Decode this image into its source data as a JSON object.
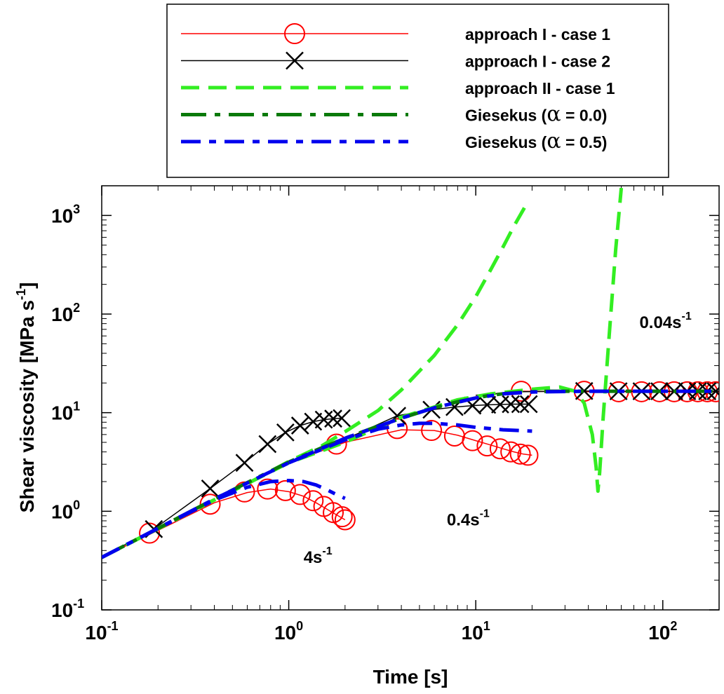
{
  "chart_data": {
    "type": "line",
    "title": "",
    "xlabel": "Time [s]",
    "ylabel": "Shear viscosity [MPa s",
    "ylabel_sup": "-1",
    "ylabel_close": "]",
    "xscale": "log",
    "yscale": "log",
    "xlim": [
      0.1,
      200
    ],
    "ylim": [
      0.1,
      2000
    ],
    "grid": false,
    "legend_position": "top, above plot",
    "x_ticks": [
      {
        "value": 0.1,
        "base": "10",
        "exp": "-1"
      },
      {
        "value": 1,
        "base": "10",
        "exp": "0"
      },
      {
        "value": 10,
        "base": "10",
        "exp": "1"
      },
      {
        "value": 100,
        "base": "10",
        "exp": "2"
      }
    ],
    "y_ticks": [
      {
        "value": 0.1,
        "base": "10",
        "exp": "-1"
      },
      {
        "value": 1,
        "base": "10",
        "exp": "0"
      },
      {
        "value": 10,
        "base": "10",
        "exp": "1"
      },
      {
        "value": 100,
        "base": "10",
        "exp": "2"
      },
      {
        "value": 1000,
        "base": "10",
        "exp": "3"
      }
    ],
    "legend": [
      {
        "pre": "approach I - case 1",
        "greek": "",
        "post": "",
        "color": "#ff0000",
        "dash": "",
        "width": 1.5,
        "marker": "circle"
      },
      {
        "pre": "approach I - case 2",
        "greek": "",
        "post": "",
        "color": "#000000",
        "dash": "",
        "width": 1.5,
        "marker": "cross"
      },
      {
        "pre": "approach II - case 1",
        "greek": "",
        "post": "",
        "color": "#33ee22",
        "dash": "26 13",
        "width": 5,
        "marker": ""
      },
      {
        "pre": "Giesekus (",
        "greek": "α",
        "post": " = 0.0)",
        "color": "#0a7a0a",
        "dash": "36 12 8 12",
        "width": 5,
        "marker": ""
      },
      {
        "pre": "Giesekus (",
        "greek": "α",
        "post": " = 0.5)",
        "color": "#0000ee",
        "dash": "28 12 10 12",
        "width": 5,
        "marker": ""
      }
    ],
    "annotations": [
      {
        "base": "4s",
        "sup": "-1",
        "x": 1.2,
        "y": 0.3
      },
      {
        "base": "0.4s",
        "sup": "-1",
        "x": 7.0,
        "y": 0.72
      },
      {
        "base": "0.04s",
        "sup": "-1",
        "x": 75,
        "y": 72
      }
    ],
    "series": [
      {
        "name": "approach I - case 1",
        "color": "#ff0000",
        "lines": [
          {
            "x": [
              0.1,
              0.2,
              0.4,
              0.6,
              0.8,
              1.0,
              1.2,
              1.4,
              1.6,
              1.8,
              2.0
            ],
            "y": [
              0.34,
              0.64,
              1.22,
              1.55,
              1.68,
              1.58,
              1.42,
              1.22,
              1.05,
              0.92,
              0.82
            ]
          },
          {
            "x": [
              1.0,
              2.0,
              4.0,
              6.0,
              8.0,
              10,
              12,
              14,
              16,
              18,
              20
            ],
            "y": [
              3.1,
              5.0,
              6.7,
              6.6,
              5.9,
              5.2,
              4.7,
              4.3,
              4.0,
              3.8,
              3.7
            ]
          },
          {
            "x": [
              10,
              18,
              40,
              60,
              80,
              100,
              120,
              140,
              160,
              180,
              200
            ],
            "y": [
              15,
              16.5,
              16.3,
              16.3,
              16.3,
              16.3,
              16.3,
              16.3,
              16.3,
              16.3,
              16.3
            ]
          }
        ],
        "markers": [
          {
            "x": [
              0.18,
              0.38,
              0.58,
              0.77,
              0.96,
              1.15,
              1.35,
              1.54,
              1.73,
              1.93,
              2.0
            ],
            "y": [
              0.6,
              1.18,
              1.57,
              1.68,
              1.62,
              1.48,
              1.28,
              1.12,
              0.97,
              0.88,
              0.82
            ]
          },
          {
            "x": [
              1.8,
              3.8,
              5.8,
              7.7,
              9.6,
              11.5,
              13.5,
              15.4,
              17.3,
              19.0
            ],
            "y": [
              4.8,
              6.9,
              6.6,
              5.8,
              5.2,
              4.6,
              4.3,
              4.0,
              3.8,
              3.7
            ]
          },
          {
            "x": [
              17.5,
              38,
              58,
              77,
              96,
              115,
              135,
              154,
              173,
              192
            ],
            "y": [
              16.5,
              16.5,
              16.3,
              16.3,
              16.3,
              16.3,
              16.3,
              16.3,
              16.3,
              16.3
            ]
          }
        ]
      },
      {
        "name": "approach I - case 2",
        "color": "#000000",
        "lines": [
          {
            "x": [
              0.1,
              0.19,
              0.38,
              0.58,
              0.77,
              0.96,
              1.15,
              1.35,
              1.54,
              1.73,
              1.92
            ],
            "y": [
              0.34,
              0.66,
              1.7,
              3.1,
              4.8,
              6.3,
              7.4,
              8.1,
              8.5,
              8.7,
              8.8
            ]
          },
          {
            "x": [
              1.0,
              1.8,
              3.8,
              5.8,
              7.7,
              9.6,
              11.5,
              13.5,
              15.4,
              17.3,
              19.2
            ],
            "y": [
              3.1,
              4.9,
              9.3,
              10.7,
              11.4,
              11.8,
              12.0,
              12.1,
              12.2,
              12.2,
              12.2
            ]
          },
          {
            "x": [
              10,
              18,
              38,
              58,
              77,
              96,
              115,
              135,
              154,
              173,
              200
            ],
            "y": [
              15,
              16.3,
              16.6,
              16.5,
              16.5,
              16.5,
              16.5,
              16.5,
              16.5,
              16.5,
              16.5
            ]
          }
        ],
        "markers": [
          {
            "x": [
              0.19,
              0.38,
              0.58,
              0.77,
              0.96,
              1.15,
              1.35,
              1.54,
              1.73,
              1.92
            ],
            "y": [
              0.66,
              1.7,
              3.1,
              4.8,
              6.3,
              7.4,
              8.1,
              8.5,
              8.7,
              8.8
            ]
          },
          {
            "x": [
              3.8,
              5.8,
              7.7,
              9.6,
              11.5,
              13.5,
              15.4,
              17.3,
              19.2
            ],
            "y": [
              9.3,
              10.7,
              11.4,
              11.8,
              12.0,
              12.1,
              12.2,
              12.2,
              12.2
            ]
          },
          {
            "x": [
              38,
              58,
              77,
              96,
              115,
              135,
              154,
              173,
              192
            ],
            "y": [
              16.6,
              16.5,
              16.5,
              16.5,
              16.5,
              16.5,
              16.5,
              16.5,
              16.5
            ]
          }
        ]
      },
      {
        "name": "approach II - case 1",
        "color": "#33ee22",
        "lines": [
          {
            "x": [
              0.1,
              0.3,
              0.6,
              1.0,
              1.5,
              2.0,
              3.0,
              4.0,
              6.0,
              8.0,
              10,
              12,
              14,
              16,
              18,
              19
            ],
            "y": [
              0.34,
              1.0,
              1.9,
              3.2,
              4.6,
              6.4,
              10.5,
              17,
              38,
              78,
              150,
              280,
              480,
              780,
              1150,
              1400
            ]
          },
          {
            "x": [
              0.1,
              0.4,
              1.0,
              2.0,
              4.0,
              8.0,
              12,
              20,
              28,
              34,
              38,
              42,
              44,
              45,
              46,
              48,
              52,
              56,
              60
            ],
            "y": [
              0.34,
              1.3,
              3.1,
              5.0,
              9.0,
              13.5,
              15.5,
              17.3,
              18.2,
              16.5,
              12.5,
              6.0,
              2.8,
              1.6,
              2.5,
              9,
              70,
              450,
              1900
            ]
          }
        ],
        "markers": []
      },
      {
        "name": "Giesekus (α = 0.0)",
        "color": "#0a7a0a",
        "lines": [
          {
            "x": [
              0.1,
              0.2,
              0.4,
              0.6,
              1.0,
              1.5,
              2.0,
              3.0,
              4.0,
              6.0,
              8.0,
              10,
              12,
              15,
              18,
              25,
              40,
              60,
              100,
              200
            ],
            "y": [
              0.34,
              0.67,
              1.33,
              1.95,
              3.15,
              4.4,
              5.5,
              7.3,
              8.8,
              11.2,
              12.9,
              14.1,
              15.0,
              15.8,
              16.2,
              16.5,
              16.5,
              16.5,
              16.5,
              16.5
            ]
          }
        ],
        "markers": []
      },
      {
        "name": "Giesekus (α = 0.5)",
        "color": "#0000ee",
        "lines": [
          {
            "x": [
              0.1,
              0.2,
              0.4,
              0.6,
              0.8,
              1.0,
              1.2,
              1.4,
              1.6,
              1.8,
              2.0
            ],
            "y": [
              0.34,
              0.67,
              1.3,
              1.75,
              2.0,
              2.05,
              2.0,
              1.85,
              1.65,
              1.48,
              1.35
            ]
          },
          {
            "x": [
              1.0,
              2.0,
              3.0,
              4.0,
              5.0,
              6.0,
              8.0,
              10,
              14,
              20
            ],
            "y": [
              3.1,
              5.3,
              6.8,
              7.5,
              7.8,
              7.8,
              7.5,
              7.1,
              6.7,
              6.5
            ]
          },
          {
            "x": [
              0.1,
              0.4,
              1.0,
              2.0,
              4.0,
              6.0,
              10,
              14,
              20,
              40,
              100,
              200
            ],
            "y": [
              0.34,
              1.33,
              3.1,
              5.5,
              8.8,
              11.2,
              14.1,
              15.5,
              16.2,
              16.5,
              16.5,
              16.5
            ]
          }
        ],
        "markers": []
      }
    ]
  }
}
